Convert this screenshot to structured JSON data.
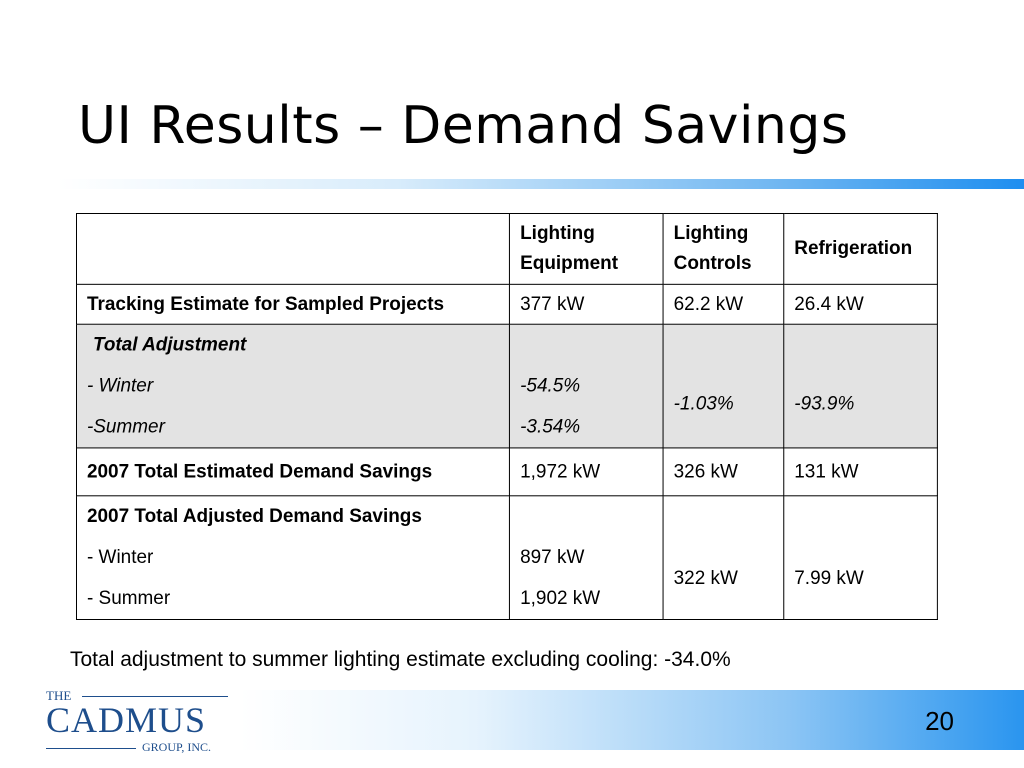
{
  "slide": {
    "title": "UI Results – Demand Savings",
    "page_number": "20",
    "footnote": "Total adjustment to summer lighting estimate excluding cooling: -34.0%"
  },
  "table": {
    "headers": [
      "",
      "Lighting Equipment",
      "Lighting Controls",
      "Refrigeration"
    ],
    "tracking": {
      "label": "Tracking Estimate for Sampled Projects",
      "values": [
        "377 kW",
        "62.2 kW",
        "26.4 kW"
      ]
    },
    "adjustment": {
      "label": "Total Adjustment",
      "winter_label": "- Winter",
      "summer_label": "-Summer",
      "equipment_winter": "-54.5%",
      "equipment_summer": "-3.54%",
      "controls": "-1.03%",
      "refrigeration": "-93.9%"
    },
    "estimated": {
      "label": "2007 Total Estimated Demand Savings",
      "values": [
        "1,972 kW",
        "326 kW",
        "131 kW"
      ]
    },
    "adjusted": {
      "label": "2007 Total Adjusted Demand Savings",
      "winter_label": "- Winter",
      "summer_label": "- Summer",
      "equipment_winter": "897 kW",
      "equipment_summer": "1,902 kW",
      "controls": "322 kW",
      "refrigeration": "7.99 kW"
    }
  },
  "logo": {
    "the": "THE",
    "name": "CADMUS",
    "group": "GROUP, INC."
  },
  "colors": {
    "accent_blue": "#1e8ef0",
    "logo_blue": "#1e4e8c",
    "shaded_row": "#e3e3e3"
  }
}
